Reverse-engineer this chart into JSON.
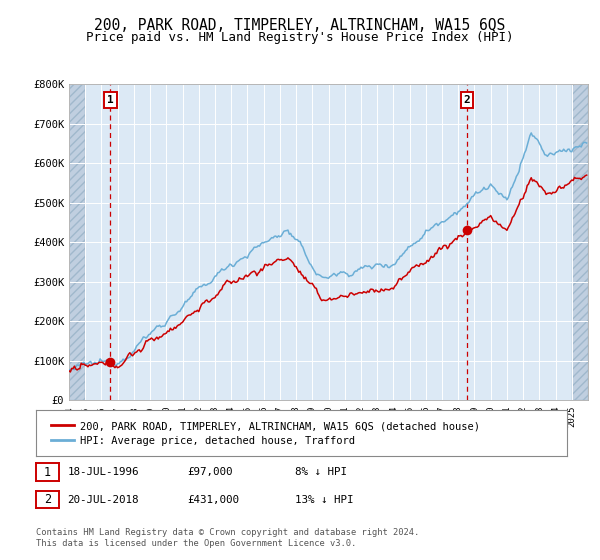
{
  "title": "200, PARK ROAD, TIMPERLEY, ALTRINCHAM, WA15 6QS",
  "subtitle": "Price paid vs. HM Land Registry's House Price Index (HPI)",
  "title_fontsize": 10.5,
  "subtitle_fontsize": 9,
  "bg_color": "#dce9f5",
  "hatch_color": "#c0cfe0",
  "grid_color": "#ffffff",
  "hpi_color": "#6baed6",
  "price_color": "#cc0000",
  "ylim": [
    0,
    800000
  ],
  "yticks": [
    0,
    100000,
    200000,
    300000,
    400000,
    500000,
    600000,
    700000,
    800000
  ],
  "sale1_year": 1996.54,
  "sale1_price": 97000,
  "sale2_year": 2018.54,
  "sale2_price": 431000,
  "legend_label_red": "200, PARK ROAD, TIMPERLEY, ALTRINCHAM, WA15 6QS (detached house)",
  "legend_label_blue": "HPI: Average price, detached house, Trafford",
  "annotation1": "1",
  "annotation2": "2",
  "note1_date": "18-JUL-1996",
  "note1_price": "£97,000",
  "note1_hpi": "8% ↓ HPI",
  "note2_date": "20-JUL-2018",
  "note2_price": "£431,000",
  "note2_hpi": "13% ↓ HPI",
  "copyright": "Contains HM Land Registry data © Crown copyright and database right 2024.\nThis data is licensed under the Open Government Licence v3.0.",
  "xmin": 1994,
  "xmax": 2026
}
